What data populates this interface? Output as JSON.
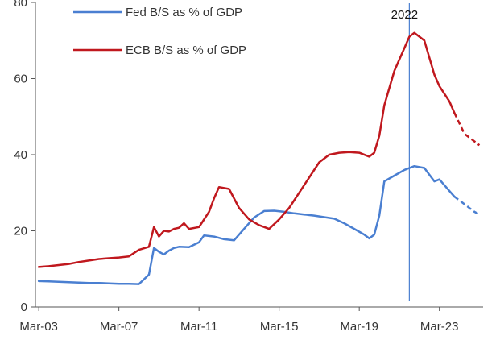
{
  "chart_data": {
    "type": "line",
    "title": "",
    "xlabel": "",
    "ylabel": "",
    "ylim": [
      0,
      80
    ],
    "y_ticks": [
      "0",
      "20",
      "40",
      "60",
      "80"
    ],
    "x_ticks": [
      "Mar-03",
      "Mar-07",
      "Mar-11",
      "Mar-15",
      "Mar-19",
      "Mar-23"
    ],
    "grid": false,
    "legend_placement": "top-left",
    "series": [
      {
        "name": "Fed B/S as % of GDP",
        "color": "#4a7fd1",
        "points": [
          [
            "2003-03",
            6.8
          ],
          [
            "2003-09",
            6.7
          ],
          [
            "2004-03",
            6.6
          ],
          [
            "2004-09",
            6.5
          ],
          [
            "2005-03",
            6.4
          ],
          [
            "2005-09",
            6.3
          ],
          [
            "2006-03",
            6.3
          ],
          [
            "2006-09",
            6.2
          ],
          [
            "2007-03",
            6.1
          ],
          [
            "2007-09",
            6.1
          ],
          [
            "2008-03",
            6.0
          ],
          [
            "2008-09",
            8.5
          ],
          [
            "2008-12",
            15.5
          ],
          [
            "2009-03",
            14.5
          ],
          [
            "2009-06",
            13.8
          ],
          [
            "2009-09",
            14.8
          ],
          [
            "2009-12",
            15.5
          ],
          [
            "2010-03",
            15.8
          ],
          [
            "2010-09",
            15.7
          ],
          [
            "2011-03",
            17.0
          ],
          [
            "2011-06",
            18.8
          ],
          [
            "2011-12",
            18.5
          ],
          [
            "2012-06",
            17.8
          ],
          [
            "2012-12",
            17.5
          ],
          [
            "2013-06",
            20.5
          ],
          [
            "2013-12",
            23.5
          ],
          [
            "2014-06",
            25.2
          ],
          [
            "2014-12",
            25.3
          ],
          [
            "2015-06",
            25.0
          ],
          [
            "2015-12",
            24.6
          ],
          [
            "2016-06",
            24.3
          ],
          [
            "2016-12",
            24.0
          ],
          [
            "2017-06",
            23.6
          ],
          [
            "2017-12",
            23.2
          ],
          [
            "2018-06",
            22.0
          ],
          [
            "2018-12",
            20.5
          ],
          [
            "2019-06",
            19.0
          ],
          [
            "2019-09",
            18.0
          ],
          [
            "2019-12",
            19.0
          ],
          [
            "2020-03",
            24.0
          ],
          [
            "2020-06",
            33.0
          ],
          [
            "2020-12",
            34.5
          ],
          [
            "2021-06",
            36.0
          ],
          [
            "2021-12",
            37.0
          ],
          [
            "2022-06",
            36.5
          ],
          [
            "2022-12",
            33.0
          ],
          [
            "2023-03",
            33.5
          ],
          [
            "2023-09",
            30.5
          ],
          [
            "2023-12",
            29.0
          ],
          [
            "2024-06",
            27.0
          ],
          [
            "2024-12",
            25.0
          ],
          [
            "2025-03",
            24.3
          ]
        ],
        "forecast_from": "2023-12"
      },
      {
        "name": "ECB B/S as % of GDP",
        "color": "#c0181e",
        "points": [
          [
            "2003-03",
            10.5
          ],
          [
            "2003-09",
            10.7
          ],
          [
            "2004-03",
            11.0
          ],
          [
            "2004-09",
            11.3
          ],
          [
            "2005-03",
            11.8
          ],
          [
            "2005-09",
            12.2
          ],
          [
            "2006-03",
            12.6
          ],
          [
            "2006-09",
            12.8
          ],
          [
            "2007-03",
            13.0
          ],
          [
            "2007-09",
            13.3
          ],
          [
            "2008-03",
            15.0
          ],
          [
            "2008-09",
            15.8
          ],
          [
            "2008-12",
            21.0
          ],
          [
            "2009-03",
            18.5
          ],
          [
            "2009-06",
            20.0
          ],
          [
            "2009-09",
            19.8
          ],
          [
            "2009-12",
            20.5
          ],
          [
            "2010-03",
            20.8
          ],
          [
            "2010-06",
            22.0
          ],
          [
            "2010-09",
            20.5
          ],
          [
            "2011-03",
            21.0
          ],
          [
            "2011-09",
            25.0
          ],
          [
            "2011-12",
            28.5
          ],
          [
            "2012-03",
            31.5
          ],
          [
            "2012-09",
            31.0
          ],
          [
            "2013-03",
            26.0
          ],
          [
            "2013-09",
            23.0
          ],
          [
            "2014-03",
            21.5
          ],
          [
            "2014-09",
            20.5
          ],
          [
            "2015-03",
            23.0
          ],
          [
            "2015-09",
            26.0
          ],
          [
            "2016-03",
            30.0
          ],
          [
            "2016-09",
            34.0
          ],
          [
            "2017-03",
            38.0
          ],
          [
            "2017-09",
            40.0
          ],
          [
            "2018-03",
            40.5
          ],
          [
            "2018-09",
            40.7
          ],
          [
            "2019-03",
            40.5
          ],
          [
            "2019-09",
            39.5
          ],
          [
            "2019-12",
            40.5
          ],
          [
            "2020-03",
            45.0
          ],
          [
            "2020-06",
            53.0
          ],
          [
            "2020-12",
            62.0
          ],
          [
            "2021-06",
            68.0
          ],
          [
            "2021-09",
            71.0
          ],
          [
            "2021-12",
            72.0
          ],
          [
            "2022-06",
            70.0
          ],
          [
            "2022-12",
            61.0
          ],
          [
            "2023-03",
            58.0
          ],
          [
            "2023-09",
            54.0
          ],
          [
            "2023-12",
            51.0
          ],
          [
            "2024-06",
            45.5
          ],
          [
            "2024-12",
            43.5
          ],
          [
            "2025-03",
            42.5
          ]
        ],
        "forecast_from": "2023-12"
      }
    ],
    "annotations": [
      {
        "text": "2022",
        "x": "2021-09"
      }
    ]
  }
}
